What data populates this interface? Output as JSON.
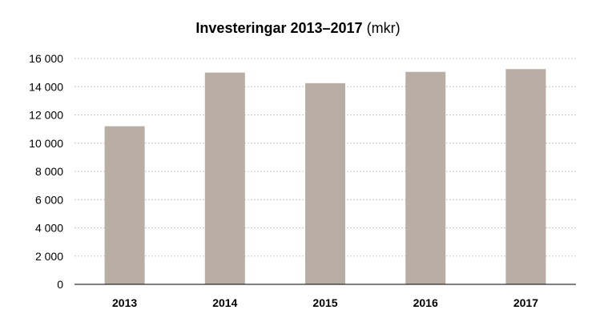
{
  "chart_data": {
    "type": "bar",
    "title": "Investeringar 2013–2017",
    "title_unit": "(mkr)",
    "xlabel": "",
    "ylabel": "",
    "categories": [
      "2013",
      "2014",
      "2015",
      "2016",
      "2017"
    ],
    "values": [
      11200,
      15000,
      14250,
      15050,
      15250
    ],
    "ylim": [
      0,
      16000
    ],
    "yticks": [
      0,
      2000,
      4000,
      6000,
      8000,
      10000,
      12000,
      14000,
      16000
    ],
    "ytick_labels": [
      "0",
      "2 000",
      "4 000",
      "6 000",
      "8 000",
      "10 000",
      "12 000",
      "14 000",
      "16 000"
    ],
    "grid": true,
    "grid_style": "dotted",
    "legend": "none",
    "bar_color": "#b8aea3",
    "grid_color": "#c8c8c8",
    "axis_color": "#000000"
  }
}
